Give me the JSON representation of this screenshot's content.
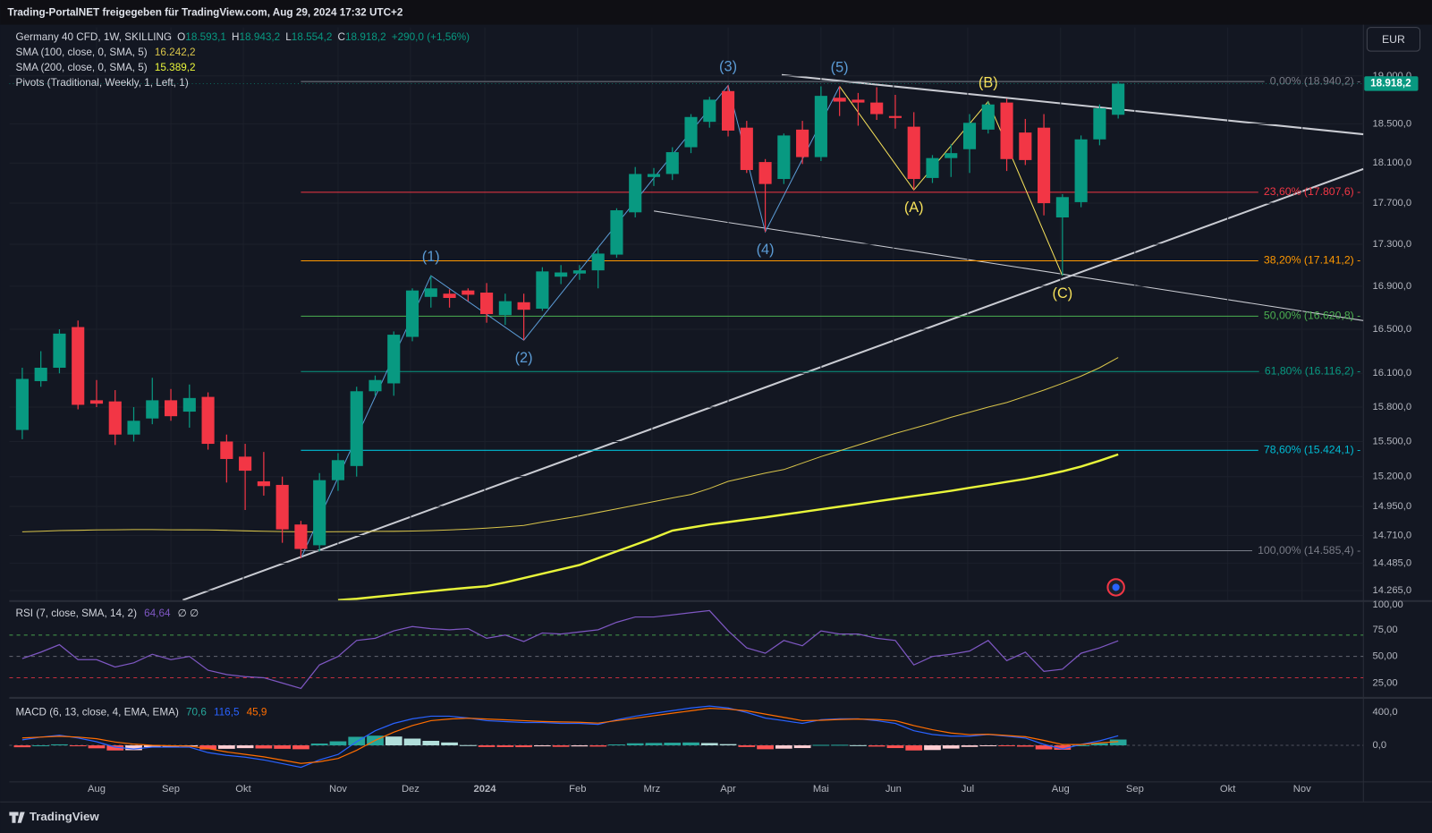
{
  "chart_data": {
    "type": "candlestick",
    "header": "Trading-PortalNET freigegeben für TradingView.com, Aug 29, 2024 17:32 UTC+2",
    "symbol": "Germany 40 CFD, 1W, SKILLING",
    "legend_ohlc": [
      {
        "key": "O",
        "value": "18.593,1"
      },
      {
        "key": "H",
        "value": "18.943,2"
      },
      {
        "key": "L",
        "value": "18.554,2"
      },
      {
        "key": "C",
        "value": "18.918,2"
      }
    ],
    "change": "+290,0 (+1,56%)",
    "pivots": "Pivots (Traditional, Weekly, 1, Left, 1)",
    "currency": "EUR",
    "last_price_label": "18.918,2",
    "brand": "TradingView",
    "up_color": "#089981",
    "down_color": "#f23645",
    "log_scale": true,
    "grid": true,
    "xlim": [
      -0.7,
      72.2
    ],
    "xticks": [
      {
        "value": 4.0,
        "label": "Aug"
      },
      {
        "value": 8.0,
        "label": "Sep"
      },
      {
        "value": 11.9,
        "label": "Okt"
      },
      {
        "value": 17.0,
        "label": "Nov"
      },
      {
        "value": 20.9,
        "label": "Dez"
      },
      {
        "value": 24.9,
        "label": "2024"
      },
      {
        "value": 29.9,
        "label": "Feb"
      },
      {
        "value": 33.9,
        "label": "Mrz"
      },
      {
        "value": 38.0,
        "label": "Apr"
      },
      {
        "value": 43.0,
        "label": "Mai"
      },
      {
        "value": 46.9,
        "label": "Jun"
      },
      {
        "value": 50.9,
        "label": "Jul"
      },
      {
        "value": 55.9,
        "label": "Aug"
      },
      {
        "value": 59.9,
        "label": "Sep"
      },
      {
        "value": 64.9,
        "label": "Okt"
      },
      {
        "value": 68.9,
        "label": "Nov"
      }
    ],
    "ylim": [
      14190,
      19520
    ],
    "yticks": [
      {
        "value": 19000,
        "label": "19.000,0"
      },
      {
        "value": 18500,
        "label": "18.500,0"
      },
      {
        "value": 18100,
        "label": "18.100,0"
      },
      {
        "value": 17700,
        "label": "17.700,0"
      },
      {
        "value": 17300,
        "label": "17.300,0"
      },
      {
        "value": 16900,
        "label": "16.900,0"
      },
      {
        "value": 16500,
        "label": "16.500,0"
      },
      {
        "value": 16100,
        "label": "16.100,0"
      },
      {
        "value": 15800,
        "label": "15.800,0"
      },
      {
        "value": 15500,
        "label": "15.500,0"
      },
      {
        "value": 15200,
        "label": "15.200,0"
      },
      {
        "value": 14950,
        "label": "14.950,0"
      },
      {
        "value": 14710,
        "label": "14.710,0"
      },
      {
        "value": 14485,
        "label": "14.485,0"
      },
      {
        "value": 14265,
        "label": "14.265,0"
      }
    ],
    "candles": {
      "open": [
        15600,
        16030,
        16150,
        16520,
        15860,
        15850,
        15560,
        15700,
        15860,
        15760,
        15890,
        15500,
        15370,
        15160,
        15130,
        14800,
        14630,
        15170,
        15290,
        15940,
        16010,
        16430,
        16800,
        16830,
        16860,
        16840,
        16630,
        16750,
        16690,
        16990,
        17020,
        17050,
        17200,
        17610,
        17960,
        17990,
        18260,
        18520,
        18840,
        18460,
        18110,
        17940,
        18440,
        18160,
        18770,
        18750,
        18720,
        18580,
        18470,
        17950,
        18150,
        18240,
        18440,
        18720,
        18410,
        18460,
        17560,
        17710,
        18340,
        18593.1
      ],
      "high": [
        16150,
        16300,
        16500,
        16580,
        16040,
        15950,
        15800,
        16060,
        15960,
        16000,
        15930,
        15560,
        15480,
        15410,
        15200,
        14830,
        15230,
        15400,
        15980,
        16080,
        16480,
        16880,
        17000,
        16870,
        16880,
        16930,
        16830,
        16830,
        17080,
        17100,
        17100,
        17260,
        17650,
        18060,
        18050,
        18260,
        18600,
        18780,
        18900,
        18530,
        18140,
        18400,
        18530,
        18890,
        18890,
        18820,
        18880,
        18800,
        18620,
        18180,
        18290,
        18600,
        18730,
        18760,
        18550,
        18600,
        17790,
        18380,
        18700,
        18943.2
      ],
      "low": [
        15520,
        15980,
        16100,
        15780,
        15800,
        15470,
        15500,
        15650,
        15680,
        15620,
        15430,
        15150,
        14920,
        15040,
        14650,
        14525,
        14580,
        15080,
        15200,
        15900,
        15900,
        16390,
        16700,
        16700,
        16760,
        16560,
        16540,
        16400,
        16670,
        16920,
        16960,
        16880,
        17170,
        17560,
        17870,
        17930,
        18200,
        18460,
        18370,
        18000,
        17420,
        17890,
        18090,
        18120,
        18580,
        18480,
        18540,
        18450,
        17830,
        17900,
        17960,
        18000,
        18400,
        18020,
        18080,
        17580,
        17000,
        17660,
        18280,
        18554.2
      ],
      "close": [
        16050,
        16150,
        16460,
        15820,
        15830,
        15560,
        15680,
        15860,
        15720,
        15880,
        15480,
        15350,
        15250,
        15120,
        14760,
        14600,
        15170,
        15340,
        15940,
        16040,
        16450,
        16860,
        16880,
        16790,
        16820,
        16640,
        16760,
        16680,
        17040,
        17030,
        17050,
        17210,
        17630,
        17990,
        17990,
        18210,
        18570,
        18750,
        18430,
        18030,
        17890,
        18380,
        18160,
        18790,
        18730,
        18720,
        18600,
        18560,
        17940,
        18150,
        18200,
        18510,
        18700,
        18140,
        18130,
        17700,
        17760,
        18340,
        18660,
        18918.2
      ]
    },
    "series": [
      {
        "name": "SMA (100, close, 0, SMA, 5)",
        "value_label": "16.242,2",
        "color": "#d8c44a",
        "width": 1,
        "values": [
          14740,
          14745,
          14750,
          14752,
          14755,
          14757,
          14758,
          14758,
          14757,
          14756,
          14755,
          14752,
          14748,
          14745,
          14742,
          14740,
          14740,
          14741,
          14742,
          14743,
          14744,
          14746,
          14750,
          14755,
          14762,
          14770,
          14780,
          14792,
          14820,
          14845,
          14870,
          14900,
          14930,
          14960,
          14990,
          15020,
          15050,
          15100,
          15160,
          15195,
          15230,
          15260,
          15315,
          15370,
          15420,
          15470,
          15520,
          15570,
          15615,
          15660,
          15710,
          15755,
          15800,
          15840,
          15895,
          15950,
          16010,
          16075,
          16150,
          16242.2
        ]
      },
      {
        "name": "SMA (200, close, 0, SMA, 5)",
        "value_label": "15.389,2",
        "color": "#e8f53a",
        "width": 2.4,
        "values": [
          null,
          null,
          null,
          null,
          null,
          null,
          null,
          null,
          null,
          null,
          null,
          null,
          null,
          null,
          null,
          null,
          null,
          14190,
          14200,
          14215,
          14230,
          14245,
          14260,
          14275,
          14288,
          14300,
          14330,
          14365,
          14400,
          14435,
          14470,
          14525,
          14580,
          14635,
          14690,
          14750,
          14775,
          14800,
          14820,
          14840,
          14860,
          14882,
          14904,
          14926,
          14948,
          14970,
          14992,
          15014,
          15036,
          15058,
          15080,
          15105,
          15130,
          15155,
          15180,
          15210,
          15245,
          15285,
          15335,
          15389.2
        ]
      }
    ],
    "fib_start": 15,
    "fib_levels": [
      {
        "value": 18940.2,
        "label": "0,00% (18.940,2) -",
        "color": "#787b86"
      },
      {
        "value": 17807.6,
        "label": "23,60% (17.807,6) -",
        "color": "#f23645"
      },
      {
        "value": 17141.2,
        "label": "38,20% (17.141,2) -",
        "color": "#ff9800"
      },
      {
        "value": 16620.8,
        "label": "50,00% (16.620,8) -",
        "color": "#4caf50"
      },
      {
        "value": 16116.2,
        "label": "61,80% (16.116,2) -",
        "color": "#089981"
      },
      {
        "value": 15424.1,
        "label": "78,60% (15.424,1) -",
        "color": "#00bcd4"
      },
      {
        "value": 14585.4,
        "label": "100,00% (14.585,4) -",
        "color": "#787b86"
      }
    ],
    "wave_lines": [
      {
        "color": "#5b9bd5",
        "points": [
          [
            15,
            14525
          ],
          [
            22,
            17000
          ],
          [
            27,
            16400
          ],
          [
            38,
            18900
          ],
          [
            40,
            17420
          ],
          [
            44,
            18890
          ]
        ],
        "labels": [
          null,
          "(1)",
          "(2)",
          "(3)",
          "(4)",
          "(5)"
        ]
      },
      {
        "color": "#f5e05a",
        "points": [
          [
            44,
            18890
          ],
          [
            48,
            17830
          ],
          [
            52,
            18730
          ],
          [
            56,
            17000
          ]
        ],
        "labels": [
          null,
          "(A)",
          "(B)",
          "(C)"
        ]
      }
    ],
    "rsi": {
      "name": "RSI (7, close, SMA, 14, 2)",
      "value_label": "64,64",
      "extra": "∅ ∅",
      "color": "#7e57c2",
      "ylim": [
        12,
        102
      ],
      "yticks": [
        {
          "value": 100,
          "label": "100,00"
        },
        {
          "value": 75,
          "label": "75,00"
        },
        {
          "value": 50,
          "label": "50,00"
        },
        {
          "value": 25,
          "label": "25,00"
        }
      ],
      "levels": [
        {
          "value": 70,
          "color": "#4caf50"
        },
        {
          "value": 50,
          "color": "#787b86"
        },
        {
          "value": 30,
          "color": "#f23645"
        }
      ],
      "values": [
        48,
        54,
        61,
        47,
        47,
        40,
        44,
        52,
        47,
        50,
        37,
        33,
        31,
        30,
        25,
        20,
        42,
        50,
        65,
        67,
        74,
        78,
        76,
        75,
        76,
        67,
        70,
        64,
        72,
        71,
        73,
        75,
        82,
        87,
        87,
        89,
        91,
        93,
        74,
        58,
        53,
        65,
        60,
        74,
        71,
        71,
        67,
        65,
        42,
        50,
        52,
        55,
        65,
        46,
        54,
        36,
        38,
        53,
        58,
        64.64
      ]
    },
    "macd": {
      "name": "MACD (6, 13, close, 4, EMA, EMA)",
      "ylim": [
        -433,
        567
      ],
      "yticks": [
        {
          "value": 400,
          "label": "400,0"
        },
        {
          "value": 0,
          "label": "0,0"
        }
      ],
      "histogram": {
        "value_label": "70,6",
        "color": "#26a69a",
        "values": [
          -23,
          0,
          12,
          -10,
          -36,
          -62,
          -59,
          -22,
          -17,
          -12,
          -49,
          -42,
          -34,
          -38,
          -42,
          -47,
          22,
          49,
          104,
          118,
          107,
          82,
          55,
          35,
          3,
          -20,
          -21,
          -22,
          -12,
          -18,
          -13,
          -15,
          11,
          25,
          29,
          32,
          35,
          28,
          15,
          -20,
          -47,
          -40,
          -33,
          6,
          7,
          2,
          -15,
          -33,
          -62,
          -57,
          -39,
          -19,
          -2,
          -9,
          -16,
          -49,
          -54,
          1,
          25,
          70.6
        ]
      },
      "macd_line": {
        "value_label": "116,5",
        "color": "#2962ff",
        "values": [
          67,
          100,
          122,
          90,
          44,
          -22,
          -44,
          -22,
          -22,
          -22,
          -89,
          -122,
          -144,
          -178,
          -222,
          -267,
          -178,
          -111,
          44,
          178,
          267,
          322,
          355,
          355,
          333,
          300,
          289,
          278,
          278,
          267,
          267,
          255,
          311,
          355,
          389,
          422,
          455,
          478,
          455,
          400,
          333,
          300,
          267,
          311,
          322,
          322,
          300,
          267,
          178,
          133,
          111,
          111,
          133,
          111,
          89,
          11,
          -44,
          11,
          55,
          116.5
        ]
      },
      "signal_line": {
        "value_label": "45,9",
        "color": "#ff6d00",
        "values": [
          90,
          100,
          110,
          100,
          80,
          40,
          15,
          0,
          -5,
          -10,
          -40,
          -80,
          -110,
          -140,
          -180,
          -220,
          -200,
          -160,
          -60,
          60,
          160,
          240,
          300,
          320,
          330,
          320,
          310,
          300,
          290,
          285,
          280,
          270,
          300,
          330,
          360,
          390,
          420,
          450,
          440,
          420,
          380,
          340,
          300,
          305,
          315,
          320,
          315,
          300,
          240,
          190,
          150,
          130,
          135,
          120,
          105,
          60,
          10,
          10,
          30,
          45.9
        ]
      }
    }
  }
}
